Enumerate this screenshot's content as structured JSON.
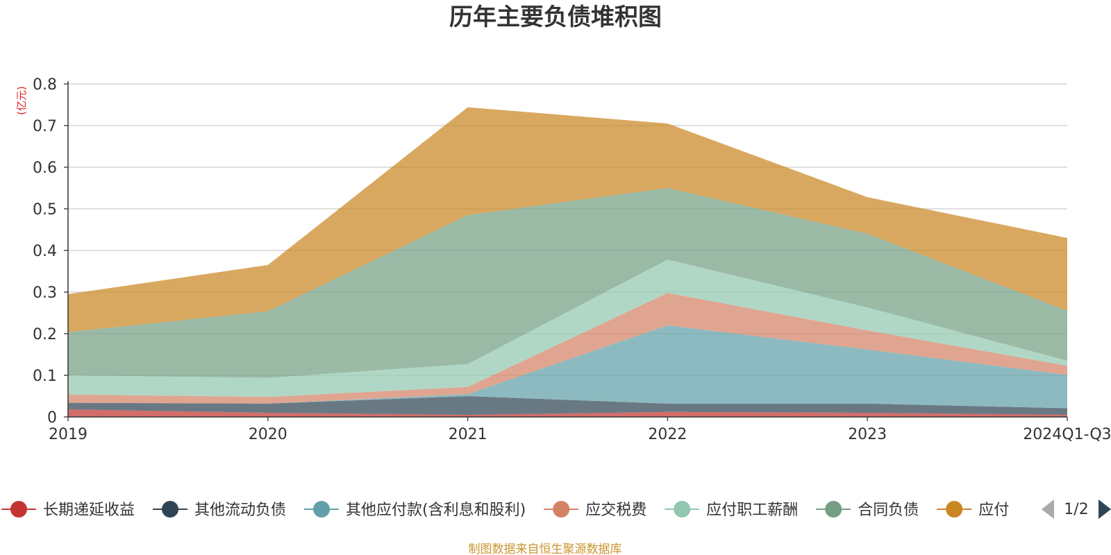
{
  "chart_data": {
    "type": "area",
    "stacked": true,
    "title": "历年主要负债堆积图",
    "unit_label": "(亿元)",
    "x": [
      "2019",
      "2020",
      "2021",
      "2022",
      "2023",
      "2024Q1-Q3"
    ],
    "yticks": [
      "0",
      "0.1",
      "0.2",
      "0.3",
      "0.4",
      "0.5",
      "0.6",
      "0.7",
      "0.8"
    ],
    "ylim": [
      0,
      0.8
    ],
    "grid": true,
    "legend_position": "bottom",
    "series": [
      {
        "name": "长期递延收益",
        "color": "#c23531",
        "values": [
          0.018,
          0.01,
          0.005,
          0.012,
          0.01,
          0.005
        ]
      },
      {
        "name": "其他流动负债",
        "color": "#2f4554",
        "values": [
          0.016,
          0.022,
          0.045,
          0.02,
          0.022,
          0.016
        ]
      },
      {
        "name": "其他应付款(含利息和股利)",
        "color": "#61a0a8",
        "values": [
          0.0,
          0.0,
          0.005,
          0.188,
          0.13,
          0.08
        ]
      },
      {
        "name": "应交税费",
        "color": "#d48265",
        "values": [
          0.02,
          0.016,
          0.017,
          0.078,
          0.046,
          0.022
        ]
      },
      {
        "name": "应付职工薪酬",
        "color": "#91c7ae",
        "values": [
          0.046,
          0.046,
          0.055,
          0.08,
          0.055,
          0.012
        ]
      },
      {
        "name": "合同负债",
        "color": "#749f83",
        "values": [
          0.104,
          0.16,
          0.358,
          0.172,
          0.177,
          0.12
        ]
      },
      {
        "name": "应付账款",
        "color": "#ca8622",
        "values": [
          0.091,
          0.111,
          0.259,
          0.155,
          0.088,
          0.175
        ]
      }
    ],
    "legend_last_visible": "应付",
    "pager": "1/2",
    "source": "制图数据来自恒生聚源数据库"
  }
}
